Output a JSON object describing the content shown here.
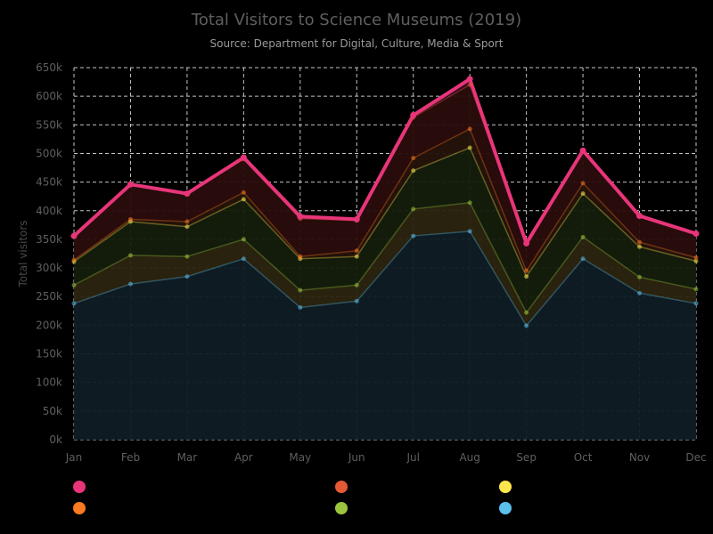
{
  "chart_data": {
    "type": "area",
    "title": "Total Visitors to Science Museums (2019)",
    "subtitle": "Source: Department for Digital, Culture, Media & Sport",
    "ylabel": "Total visitors",
    "ylim": [
      0,
      650000
    ],
    "y_ticks": [
      0,
      50000,
      100000,
      150000,
      200000,
      250000,
      300000,
      350000,
      400000,
      450000,
      500000,
      550000,
      600000,
      650000
    ],
    "y_tick_labels": [
      "0k",
      "50k",
      "100k",
      "150k",
      "200k",
      "250k",
      "300k",
      "350k",
      "400k",
      "450k",
      "500k",
      "550k",
      "600k",
      "650k"
    ],
    "categories": [
      "Jan",
      "Feb",
      "Mar",
      "Apr",
      "May",
      "Jun",
      "Jul",
      "Aug",
      "Sep",
      "Oct",
      "Nov",
      "Dec"
    ],
    "grid": true,
    "legend_position": "bottom",
    "series": [
      {
        "color": "#5bc0eb",
        "fill": "#0f1c24",
        "values": [
          238000,
          272000,
          285000,
          316000,
          231000,
          242000,
          356000,
          364000,
          199000,
          316000,
          256000,
          238000
        ]
      },
      {
        "color": "#9bc53d",
        "fill": "#2a2410",
        "values": [
          270000,
          322000,
          320000,
          350000,
          261000,
          270000,
          403000,
          414000,
          222000,
          354000,
          284000,
          263000
        ]
      },
      {
        "color": "#fde74c",
        "fill": "#141d0c",
        "values": [
          311000,
          381000,
          372000,
          420000,
          316000,
          320000,
          470000,
          510000,
          285000,
          430000,
          337000,
          312000
        ]
      },
      {
        "color": "#fa7921",
        "fill": "#251309",
        "values": [
          314000,
          385000,
          381000,
          432000,
          320000,
          330000,
          492000,
          543000,
          295000,
          448000,
          345000,
          318000
        ]
      },
      {
        "color": "#e55934",
        "fill": "#2a0c0c",
        "values": [
          356000,
          446000,
          430000,
          490000,
          386000,
          383000,
          563000,
          620000,
          343000,
          505000,
          391000,
          360000
        ]
      },
      {
        "color": "#e8357a",
        "fill": "#3a0c22",
        "values": [
          356000,
          446000,
          430000,
          493000,
          390000,
          385000,
          567000,
          630000,
          343000,
          505000,
          391000,
          360000
        ]
      }
    ],
    "legend_colors": [
      "#e8357a",
      "#e55934",
      "#fde74c",
      "#fa7921",
      "#9bc53d",
      "#5bc0eb"
    ]
  }
}
